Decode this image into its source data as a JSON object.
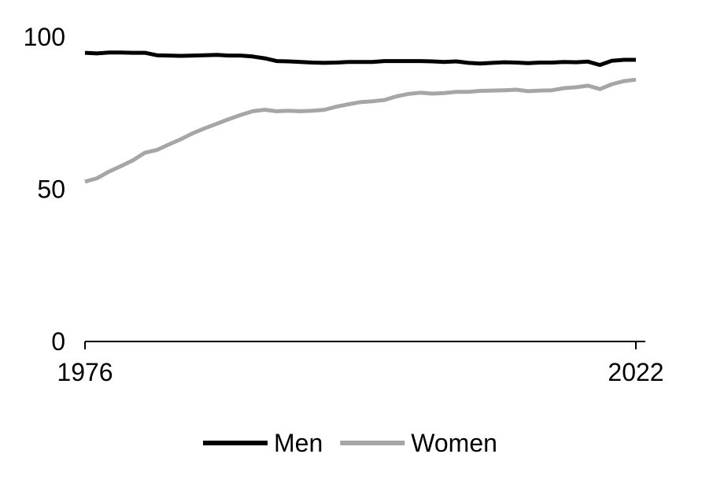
{
  "chart_data": {
    "type": "line",
    "title": "",
    "xlabel": "",
    "ylabel": "",
    "xlim": [
      1976,
      2022
    ],
    "ylim": [
      0,
      100
    ],
    "x_ticks": [
      1976,
      2022
    ],
    "y_ticks": [
      0,
      50,
      100
    ],
    "x_tick_labels": [
      "1976",
      "2022"
    ],
    "y_tick_labels": [
      "0",
      "50",
      "100"
    ],
    "grid": false,
    "legend_position": "bottom",
    "x": [
      1976,
      1977,
      1978,
      1979,
      1980,
      1981,
      1982,
      1983,
      1984,
      1985,
      1986,
      1987,
      1988,
      1989,
      1990,
      1991,
      1992,
      1993,
      1994,
      1995,
      1996,
      1997,
      1998,
      1999,
      2000,
      2001,
      2002,
      2003,
      2004,
      2005,
      2006,
      2007,
      2008,
      2009,
      2010,
      2011,
      2012,
      2013,
      2014,
      2015,
      2016,
      2017,
      2018,
      2019,
      2020,
      2021,
      2022
    ],
    "series": [
      {
        "name": "Men",
        "color": "#000000",
        "values": [
          94.8,
          94.6,
          94.9,
          94.9,
          94.8,
          94.8,
          94.0,
          93.9,
          93.8,
          93.9,
          94.0,
          94.1,
          93.9,
          93.9,
          93.6,
          93.0,
          92.1,
          92.0,
          91.8,
          91.6,
          91.5,
          91.6,
          91.8,
          91.8,
          91.8,
          92.1,
          92.1,
          92.1,
          92.1,
          92.0,
          91.8,
          92.0,
          91.5,
          91.3,
          91.5,
          91.7,
          91.6,
          91.4,
          91.6,
          91.6,
          91.8,
          91.7,
          91.9,
          90.8,
          92.2,
          92.5,
          92.5
        ]
      },
      {
        "name": "Women",
        "color": "#a6a6a6",
        "values": [
          52.5,
          53.6,
          55.8,
          57.6,
          59.5,
          62.0,
          62.9,
          64.7,
          66.4,
          68.4,
          70.0,
          71.5,
          73.0,
          74.4,
          75.6,
          76.1,
          75.6,
          75.8,
          75.6,
          75.8,
          76.1,
          77.1,
          77.9,
          78.6,
          78.9,
          79.3,
          80.5,
          81.3,
          81.7,
          81.4,
          81.6,
          82.0,
          82.0,
          82.3,
          82.4,
          82.5,
          82.7,
          82.2,
          82.4,
          82.5,
          83.2,
          83.5,
          84.0,
          82.9,
          84.5,
          85.5,
          86.0
        ]
      }
    ]
  }
}
